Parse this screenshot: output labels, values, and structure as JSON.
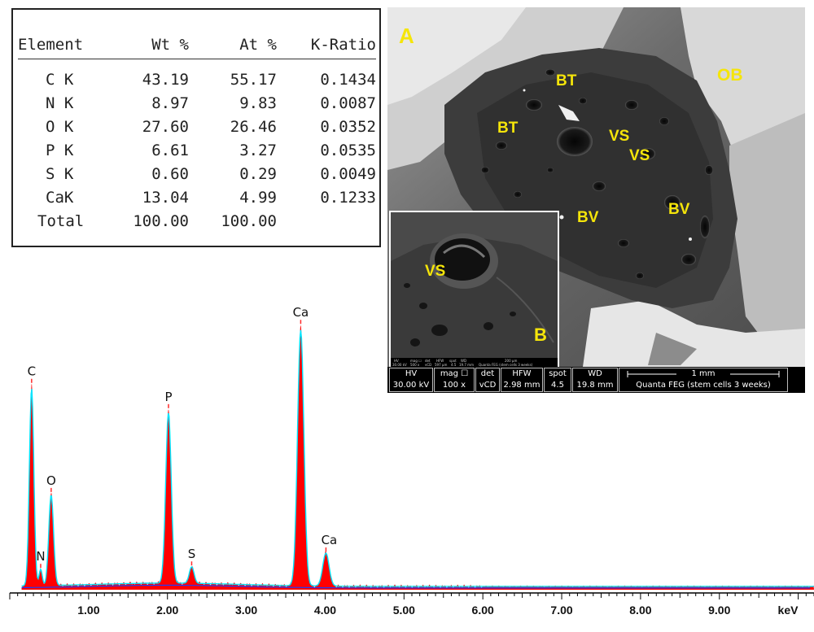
{
  "table": {
    "headers": [
      "Element",
      "Wt %",
      "At %",
      "K-Ratio"
    ],
    "rows": [
      [
        "C K",
        "43.19",
        "55.17",
        "0.1434"
      ],
      [
        "N K",
        "8.97",
        "9.83",
        "0.0087"
      ],
      [
        "O K",
        "27.60",
        "26.46",
        "0.0352"
      ],
      [
        "P K",
        "6.61",
        "3.27",
        "0.0535"
      ],
      [
        "S K",
        "0.60",
        "0.29",
        "0.0049"
      ],
      [
        "CaK",
        "13.04",
        "4.99",
        "0.1233"
      ]
    ],
    "total": [
      "Total",
      "100.00",
      "100.00",
      ""
    ]
  },
  "micrograph": {
    "panel_a": "A",
    "panel_b": "B",
    "labels": [
      "OB",
      "BT",
      "BT",
      "VS",
      "VS",
      "BV",
      "BV"
    ],
    "inset_label": "VS",
    "label_color": "#f5e50a",
    "databar": {
      "hv_label": "HV",
      "hv_value": "30.00 kV",
      "mag_label": "mag ☐",
      "mag_value": "100 x",
      "det_label": "det",
      "det_value": "vCD",
      "hfw_label": "HFW",
      "hfw_value": "2.98 mm",
      "spot_label": "spot",
      "spot_value": "4.5",
      "wd_label": "WD",
      "wd_value": "19.8 mm",
      "scale_label": "1 mm",
      "instrument": "Quanta FEG (stem cells 3 weeks)"
    },
    "inset_bar": {
      "hv": "HV",
      "hv_value": "30.00 kV",
      "mag": "mag ☐",
      "mag_value": "500 x",
      "det": "det",
      "det_value": "vCD",
      "hfw": "HFW",
      "hfw_value": "597 µm",
      "spot": "spot",
      "spot_value": "4.5",
      "wd": "WD",
      "wd_value": "19.7 mm",
      "scale": "200 µm",
      "instrument": "Quanta FEG (stem cells 3 weeks)"
    }
  },
  "chart_data": {
    "type": "line",
    "xlabel": "keV",
    "xlim": [
      0,
      10.2
    ],
    "ylim": [
      0,
      1
    ],
    "x_ticks": [
      "1.00",
      "2.00",
      "3.00",
      "4.00",
      "5.00",
      "6.00",
      "7.00",
      "8.00",
      "9.00"
    ],
    "x_tick_values": [
      1,
      2,
      3,
      4,
      5,
      6,
      7,
      8,
      9
    ],
    "fill_color": "#ff0000",
    "fit_color": "#00e5ff",
    "baseline_color": "#1a3cff",
    "peaks": [
      {
        "label": "C",
        "x": 0.277,
        "y": 0.72
      },
      {
        "label": "N",
        "x": 0.392,
        "y": 0.06
      },
      {
        "label": "O",
        "x": 0.525,
        "y": 0.33
      },
      {
        "label": "P",
        "x": 2.013,
        "y": 0.62
      },
      {
        "label": "S",
        "x": 2.307,
        "y": 0.06
      },
      {
        "label": "Ca",
        "x": 3.69,
        "y": 0.93
      },
      {
        "label": "Ca",
        "x": 4.01,
        "y": 0.12
      }
    ]
  }
}
